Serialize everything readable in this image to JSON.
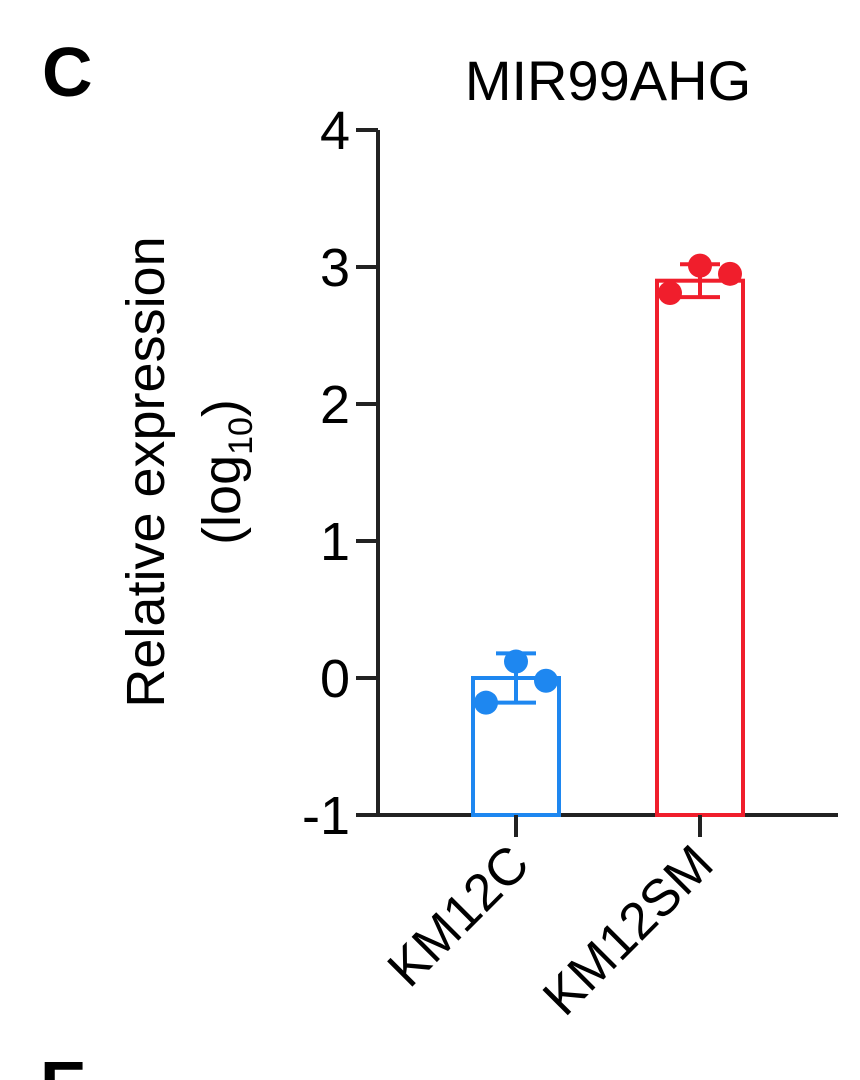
{
  "panel_label": "C",
  "next_panel_label": "E",
  "chart_data": {
    "type": "bar",
    "title": "MIR99AHG",
    "ylabel": "Relative expression",
    "ylabel_line2": "(log",
    "ylabel_subscript": "10",
    "ylabel_close": ")",
    "xlabel": "",
    "ylim": [
      -1,
      4
    ],
    "yticks": [
      -1,
      0,
      1,
      2,
      3,
      4
    ],
    "categories": [
      "KM12C",
      "KM12SM"
    ],
    "values": [
      0.0,
      2.9
    ],
    "error": [
      0.18,
      0.12
    ],
    "colors": [
      "#1e87f0",
      "#f01e2c"
    ],
    "points": [
      [
        0.12,
        -0.02,
        -0.18
      ],
      [
        3.01,
        2.95,
        2.81
      ]
    ],
    "grid": false,
    "legend": "none"
  }
}
